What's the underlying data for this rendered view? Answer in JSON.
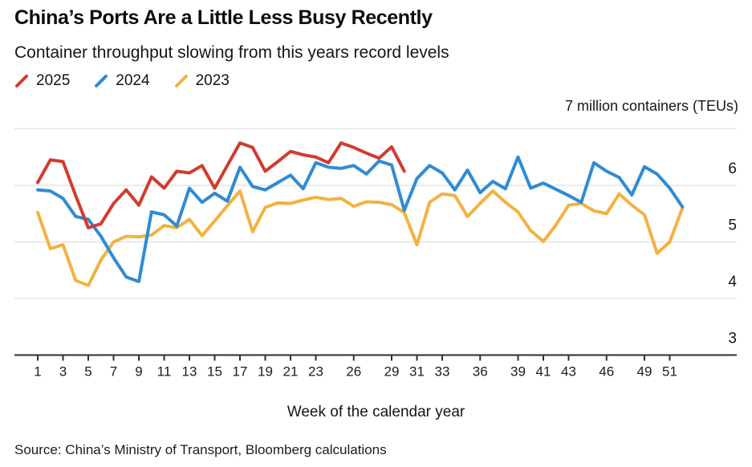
{
  "header": {
    "title": "China’s Ports Are a Little Less Busy Recently",
    "subtitle": "Container throughput slowing from this years record levels"
  },
  "source": "Source: China’s Ministry of Transport, Bloomberg calculations",
  "colors": {
    "red_2025": "#d23b2f",
    "blue_2024": "#2f8bd3",
    "yellow_2023": "#f3b140",
    "gridline": "#e3e3e3",
    "axis": "#2e2e2e",
    "text": "#161616"
  },
  "chart_data": {
    "type": "line",
    "title": "China’s Ports Are a Little Less Busy Recently",
    "subtitle": "Container throughput slowing from this years record levels",
    "xlabel": "Week of the calendar year",
    "ylabel": "million containers (TEUs)",
    "unit_label": "7 million containers (TEUs)",
    "legend_position": "top-left",
    "grid": "horizontal",
    "xlim": [
      1,
      52
    ],
    "ylim": [
      3,
      7
    ],
    "x_ticks": [
      1,
      3,
      5,
      7,
      9,
      11,
      13,
      15,
      17,
      19,
      21,
      23,
      26,
      29,
      31,
      33,
      36,
      39,
      41,
      43,
      46,
      49,
      51
    ],
    "y_ticks": [
      6,
      5,
      4,
      3
    ],
    "y_gridlines": [
      7,
      6,
      5,
      4
    ],
    "x_unit": "week of calendar year, weekly values starting at week 1",
    "series": [
      {
        "name": "2025",
        "color": "#d23b2f",
        "start_week": 1,
        "values": [
          6.05,
          6.45,
          6.42,
          5.82,
          5.25,
          5.32,
          5.68,
          5.92,
          5.65,
          6.15,
          5.95,
          6.25,
          6.22,
          6.35,
          5.95,
          6.35,
          6.75,
          6.67,
          6.25,
          6.42,
          6.6,
          6.54,
          6.5,
          6.4,
          6.75,
          6.67,
          6.57,
          6.48,
          6.68,
          6.25
        ]
      },
      {
        "name": "2024",
        "color": "#2f8bd3",
        "start_week": 1,
        "values": [
          5.92,
          5.9,
          5.77,
          5.45,
          5.4,
          5.1,
          4.72,
          4.38,
          4.3,
          5.53,
          5.48,
          5.28,
          5.95,
          5.7,
          5.86,
          5.72,
          6.32,
          5.98,
          5.92,
          6.05,
          6.18,
          5.94,
          6.4,
          6.32,
          6.3,
          6.35,
          6.2,
          6.43,
          6.36,
          5.56,
          6.12,
          6.35,
          6.22,
          5.92,
          6.27,
          5.87,
          6.07,
          5.94,
          6.5,
          5.95,
          6.04,
          5.93,
          5.82,
          5.7,
          6.4,
          6.25,
          6.14,
          5.83,
          6.33,
          6.2,
          5.95,
          5.62
        ]
      },
      {
        "name": "2023",
        "color": "#f3b140",
        "start_week": 1,
        "values": [
          5.52,
          4.88,
          4.95,
          4.32,
          4.23,
          4.68,
          5.0,
          5.1,
          5.09,
          5.12,
          5.29,
          5.25,
          5.4,
          5.11,
          5.37,
          5.64,
          5.9,
          5.18,
          5.61,
          5.69,
          5.68,
          5.74,
          5.79,
          5.75,
          5.77,
          5.63,
          5.71,
          5.7,
          5.66,
          5.52,
          4.95,
          5.7,
          5.85,
          5.82,
          5.45,
          5.68,
          5.9,
          5.7,
          5.53,
          5.2,
          5.01,
          5.3,
          5.65,
          5.68,
          5.55,
          5.5,
          5.85,
          5.65,
          5.48,
          4.8,
          5.0,
          5.6
        ]
      }
    ]
  }
}
